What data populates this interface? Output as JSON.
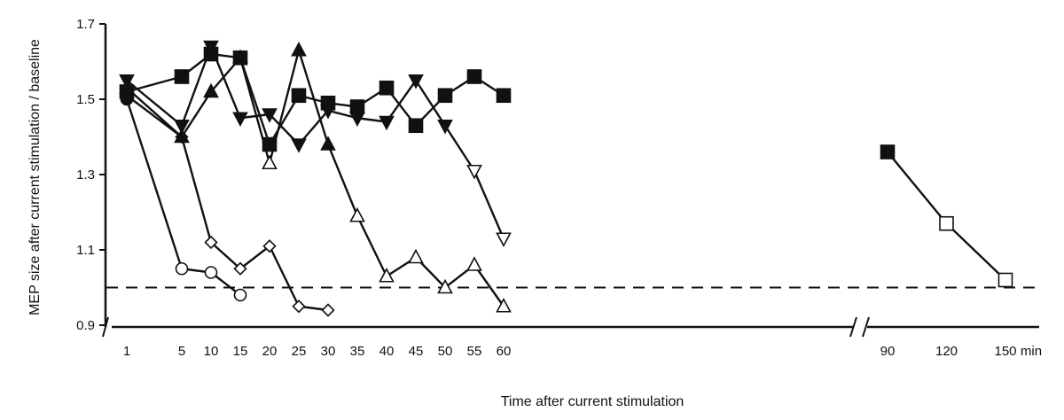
{
  "chart_data": {
    "type": "line",
    "title": "",
    "xlabel": "Time after current stimulation",
    "ylabel": "MEP size after current stimulation / baseline",
    "x_unit": "min",
    "ylim": [
      0.9,
      1.7
    ],
    "y_ticks": [
      0.9,
      1.1,
      1.3,
      1.5,
      1.7
    ],
    "y_tick_labels": [
      "0.9",
      "1.1",
      "1.3",
      "1.5",
      "1.7"
    ],
    "x_ticks": [
      1,
      5,
      10,
      15,
      20,
      25,
      30,
      35,
      40,
      45,
      50,
      55,
      60,
      90,
      120,
      150
    ],
    "x_tick_labels": [
      "1",
      "5",
      "10",
      "15",
      "20",
      "25",
      "30",
      "35",
      "40",
      "45",
      "50",
      "55",
      "60",
      "90",
      "120",
      "150"
    ],
    "axis_break_after": 60,
    "baseline": 1.0,
    "series": [
      {
        "name": "circle series",
        "marker": "circle",
        "points": [
          {
            "x": 1,
            "y": 1.5,
            "filled": true
          },
          {
            "x": 5,
            "y": 1.05,
            "filled": false
          },
          {
            "x": 10,
            "y": 1.04,
            "filled": false
          },
          {
            "x": 15,
            "y": 0.98,
            "filled": false
          }
        ]
      },
      {
        "name": "diamond series",
        "marker": "diamond",
        "points": [
          {
            "x": 1,
            "y": 1.51,
            "filled": true
          },
          {
            "x": 5,
            "y": 1.4,
            "filled": true
          },
          {
            "x": 10,
            "y": 1.12,
            "filled": false
          },
          {
            "x": 15,
            "y": 1.05,
            "filled": false
          },
          {
            "x": 20,
            "y": 1.11,
            "filled": false
          },
          {
            "x": 25,
            "y": 0.95,
            "filled": false
          },
          {
            "x": 30,
            "y": 0.94,
            "filled": false
          }
        ]
      },
      {
        "name": "triangle-up series",
        "marker": "triangle-up",
        "points": [
          {
            "x": 1,
            "y": 1.53,
            "filled": true
          },
          {
            "x": 5,
            "y": 1.4,
            "filled": true
          },
          {
            "x": 10,
            "y": 1.52,
            "filled": true
          },
          {
            "x": 15,
            "y": 1.61,
            "filled": true
          },
          {
            "x": 20,
            "y": 1.33,
            "filled": false
          },
          {
            "x": 25,
            "y": 1.63,
            "filled": true
          },
          {
            "x": 30,
            "y": 1.38,
            "filled": true
          },
          {
            "x": 35,
            "y": 1.19,
            "filled": false
          },
          {
            "x": 40,
            "y": 1.03,
            "filled": false
          },
          {
            "x": 45,
            "y": 1.08,
            "filled": false
          },
          {
            "x": 50,
            "y": 1.0,
            "filled": false
          },
          {
            "x": 55,
            "y": 1.06,
            "filled": false
          },
          {
            "x": 60,
            "y": 0.95,
            "filled": false
          }
        ]
      },
      {
        "name": "triangle-down series",
        "marker": "triangle-down",
        "points": [
          {
            "x": 1,
            "y": 1.55,
            "filled": true
          },
          {
            "x": 5,
            "y": 1.43,
            "filled": true
          },
          {
            "x": 10,
            "y": 1.64,
            "filled": true
          },
          {
            "x": 15,
            "y": 1.45,
            "filled": true
          },
          {
            "x": 20,
            "y": 1.46,
            "filled": true
          },
          {
            "x": 25,
            "y": 1.38,
            "filled": true
          },
          {
            "x": 30,
            "y": 1.47,
            "filled": true
          },
          {
            "x": 35,
            "y": 1.45,
            "filled": true
          },
          {
            "x": 40,
            "y": 1.44,
            "filled": true
          },
          {
            "x": 45,
            "y": 1.55,
            "filled": true
          },
          {
            "x": 50,
            "y": 1.43,
            "filled": true
          },
          {
            "x": 55,
            "y": 1.31,
            "filled": false
          },
          {
            "x": 60,
            "y": 1.13,
            "filled": false
          }
        ]
      },
      {
        "name": "square series",
        "marker": "square",
        "points": [
          {
            "x": 1,
            "y": 1.52,
            "filled": true
          },
          {
            "x": 5,
            "y": 1.56,
            "filled": true
          },
          {
            "x": 10,
            "y": 1.62,
            "filled": true
          },
          {
            "x": 15,
            "y": 1.61,
            "filled": true
          },
          {
            "x": 20,
            "y": 1.38,
            "filled": true
          },
          {
            "x": 25,
            "y": 1.51,
            "filled": true
          },
          {
            "x": 30,
            "y": 1.49,
            "filled": true
          },
          {
            "x": 35,
            "y": 1.48,
            "filled": true
          },
          {
            "x": 40,
            "y": 1.53,
            "filled": true
          },
          {
            "x": 45,
            "y": 1.43,
            "filled": true
          },
          {
            "x": 50,
            "y": 1.51,
            "filled": true
          },
          {
            "x": 55,
            "y": 1.56,
            "filled": true
          },
          {
            "x": 60,
            "y": 1.51,
            "filled": true
          }
        ]
      },
      {
        "name": "square series after break",
        "marker": "square",
        "points": [
          {
            "x": 90,
            "y": 1.36,
            "filled": true
          },
          {
            "x": 120,
            "y": 1.17,
            "filled": false
          },
          {
            "x": 150,
            "y": 1.02,
            "filled": false
          }
        ]
      }
    ]
  }
}
